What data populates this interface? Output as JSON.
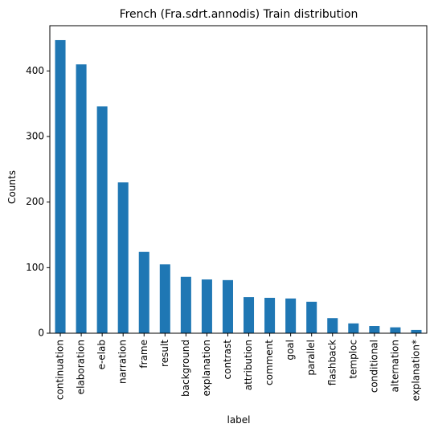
{
  "chart_data": {
    "type": "bar",
    "title": "French (Fra.sdrt.annodis) Train distribution",
    "xlabel": "label",
    "ylabel": "Counts",
    "categories": [
      "continuation",
      "elaboration",
      "e-elab",
      "narration",
      "frame",
      "result",
      "background",
      "explanation",
      "contrast",
      "attribution",
      "comment",
      "goal",
      "parallel",
      "flashback",
      "temploc",
      "conditional",
      "alternation",
      "explanation*"
    ],
    "values": [
      447,
      410,
      346,
      230,
      124,
      105,
      86,
      82,
      81,
      55,
      54,
      53,
      48,
      23,
      15,
      11,
      9,
      5
    ],
    "ylim": [
      0,
      469
    ],
    "yticks": [
      0,
      100,
      200,
      300,
      400
    ],
    "bar_color": "#1f77b4",
    "grid": false,
    "legend": null
  }
}
